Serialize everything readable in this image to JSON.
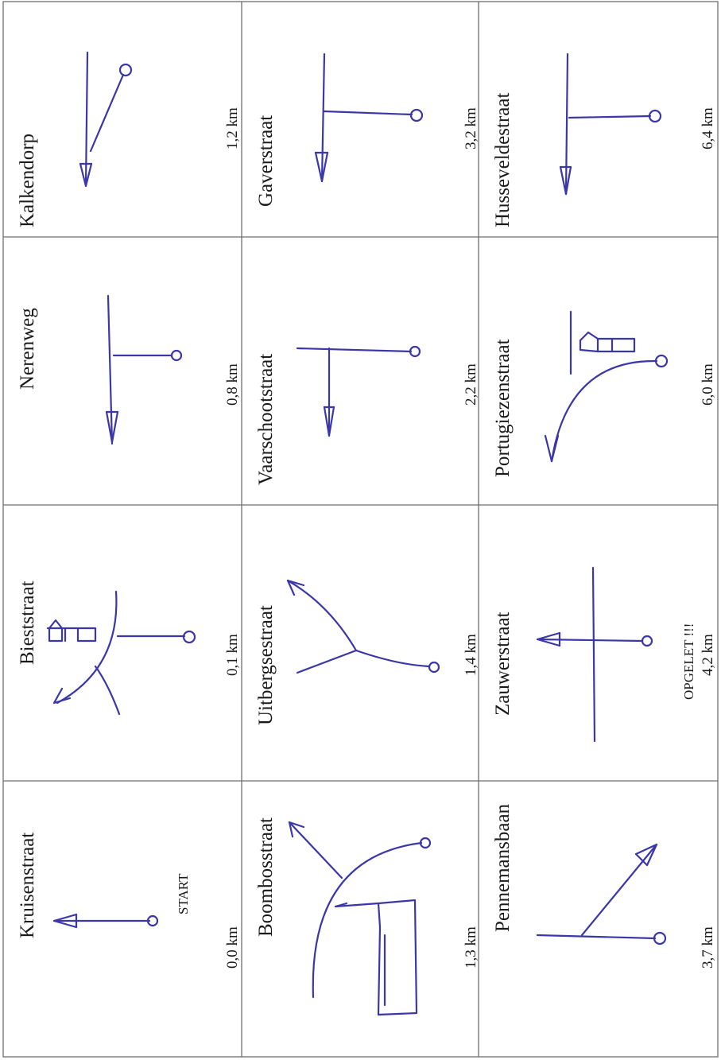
{
  "cells": [
    {
      "street": "Kruisenstraat",
      "distance": "0,0 km",
      "note": "START"
    },
    {
      "street": "Bieststraat",
      "distance": "0,1 km",
      "note": ""
    },
    {
      "street": "Nerenweg",
      "distance": "0,8 km",
      "note": ""
    },
    {
      "street": "Kalkendorp",
      "distance": "1,2 km",
      "note": ""
    },
    {
      "street": "Boombosstraat",
      "distance": "1,3 km",
      "note": ""
    },
    {
      "street": "Uitbergsestraat",
      "distance": "1,4 km",
      "note": ""
    },
    {
      "street": "Vaarschootstraat",
      "distance": "2,2 km",
      "note": ""
    },
    {
      "street": "Gaverstraat",
      "distance": "3,2 km",
      "note": ""
    },
    {
      "street": "Pennemansbaan",
      "distance": "3,7 km",
      "note": ""
    },
    {
      "street": "Zauwerstraat",
      "distance": "4,2 km",
      "note": "OPGELET !!!"
    },
    {
      "street": "Portugiezenstraat",
      "distance": "6,0 km",
      "note": ""
    },
    {
      "street": "Husseveldestraat",
      "distance": "6,4 km",
      "note": ""
    }
  ],
  "colors": {
    "ink": "#3b37a8",
    "grid": "#6f6f6f"
  }
}
